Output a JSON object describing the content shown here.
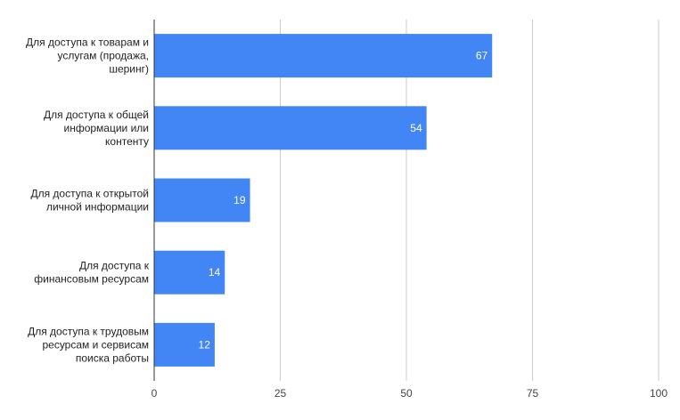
{
  "chart_data": {
    "type": "bar",
    "orientation": "horizontal",
    "categories": [
      [
        "Для доступа к товарам и",
        "услугам (продажа,",
        "шеринг)"
      ],
      [
        "Для доступа к общей",
        "информации или",
        "контенту"
      ],
      [
        "Для доступа к открытой",
        "личной информации"
      ],
      [
        "Для доступа к",
        "финансовым ресурсам"
      ],
      [
        "Для доступа к трудовым",
        "ресурсам и сервисам",
        "поиска работы"
      ]
    ],
    "values": [
      67,
      54,
      19,
      14,
      12
    ],
    "xlim": [
      0,
      100
    ],
    "xticks": [
      "0",
      "25",
      "50",
      "75",
      "100"
    ],
    "tick_values": [
      0,
      25,
      50,
      75,
      100
    ],
    "title": "",
    "xlabel": "",
    "ylabel": "",
    "grid": true,
    "data_labels": true,
    "bar_color": "#4285f4"
  }
}
